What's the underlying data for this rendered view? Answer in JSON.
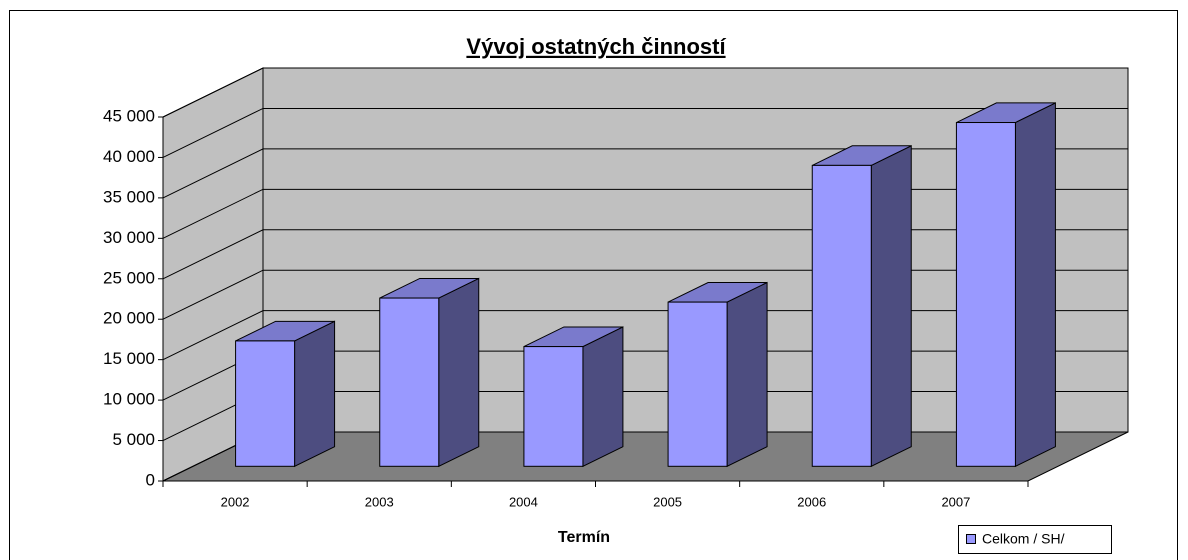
{
  "chart_data": {
    "type": "bar3d",
    "title": "Vývoj ostatných činností",
    "x_label": "Termín",
    "categories": [
      "2002",
      "2003",
      "2004",
      "2005",
      "2006",
      "2007"
    ],
    "series": [
      {
        "name": "Celkom / SH/",
        "color": "#9999ff",
        "values": [
          15500,
          20800,
          14800,
          20300,
          37200,
          42500
        ]
      }
    ],
    "ylim": [
      0,
      45000
    ],
    "yticks": [
      0,
      {
        "value": 5000,
        "label": "5 000"
      },
      {
        "value": 10000,
        "label": "10 000"
      },
      {
        "value": 15000,
        "label": "15 000"
      },
      {
        "value": 20000,
        "label": "20 000"
      },
      {
        "value": 25000,
        "label": "25 000"
      },
      {
        "value": 30000,
        "label": "30 000"
      },
      {
        "value": 35000,
        "label": "35 000"
      },
      {
        "value": 40000,
        "label": "40 000"
      },
      {
        "value": 45000,
        "label": "45 000"
      }
    ],
    "grid": true,
    "legend": "bottom-right"
  }
}
